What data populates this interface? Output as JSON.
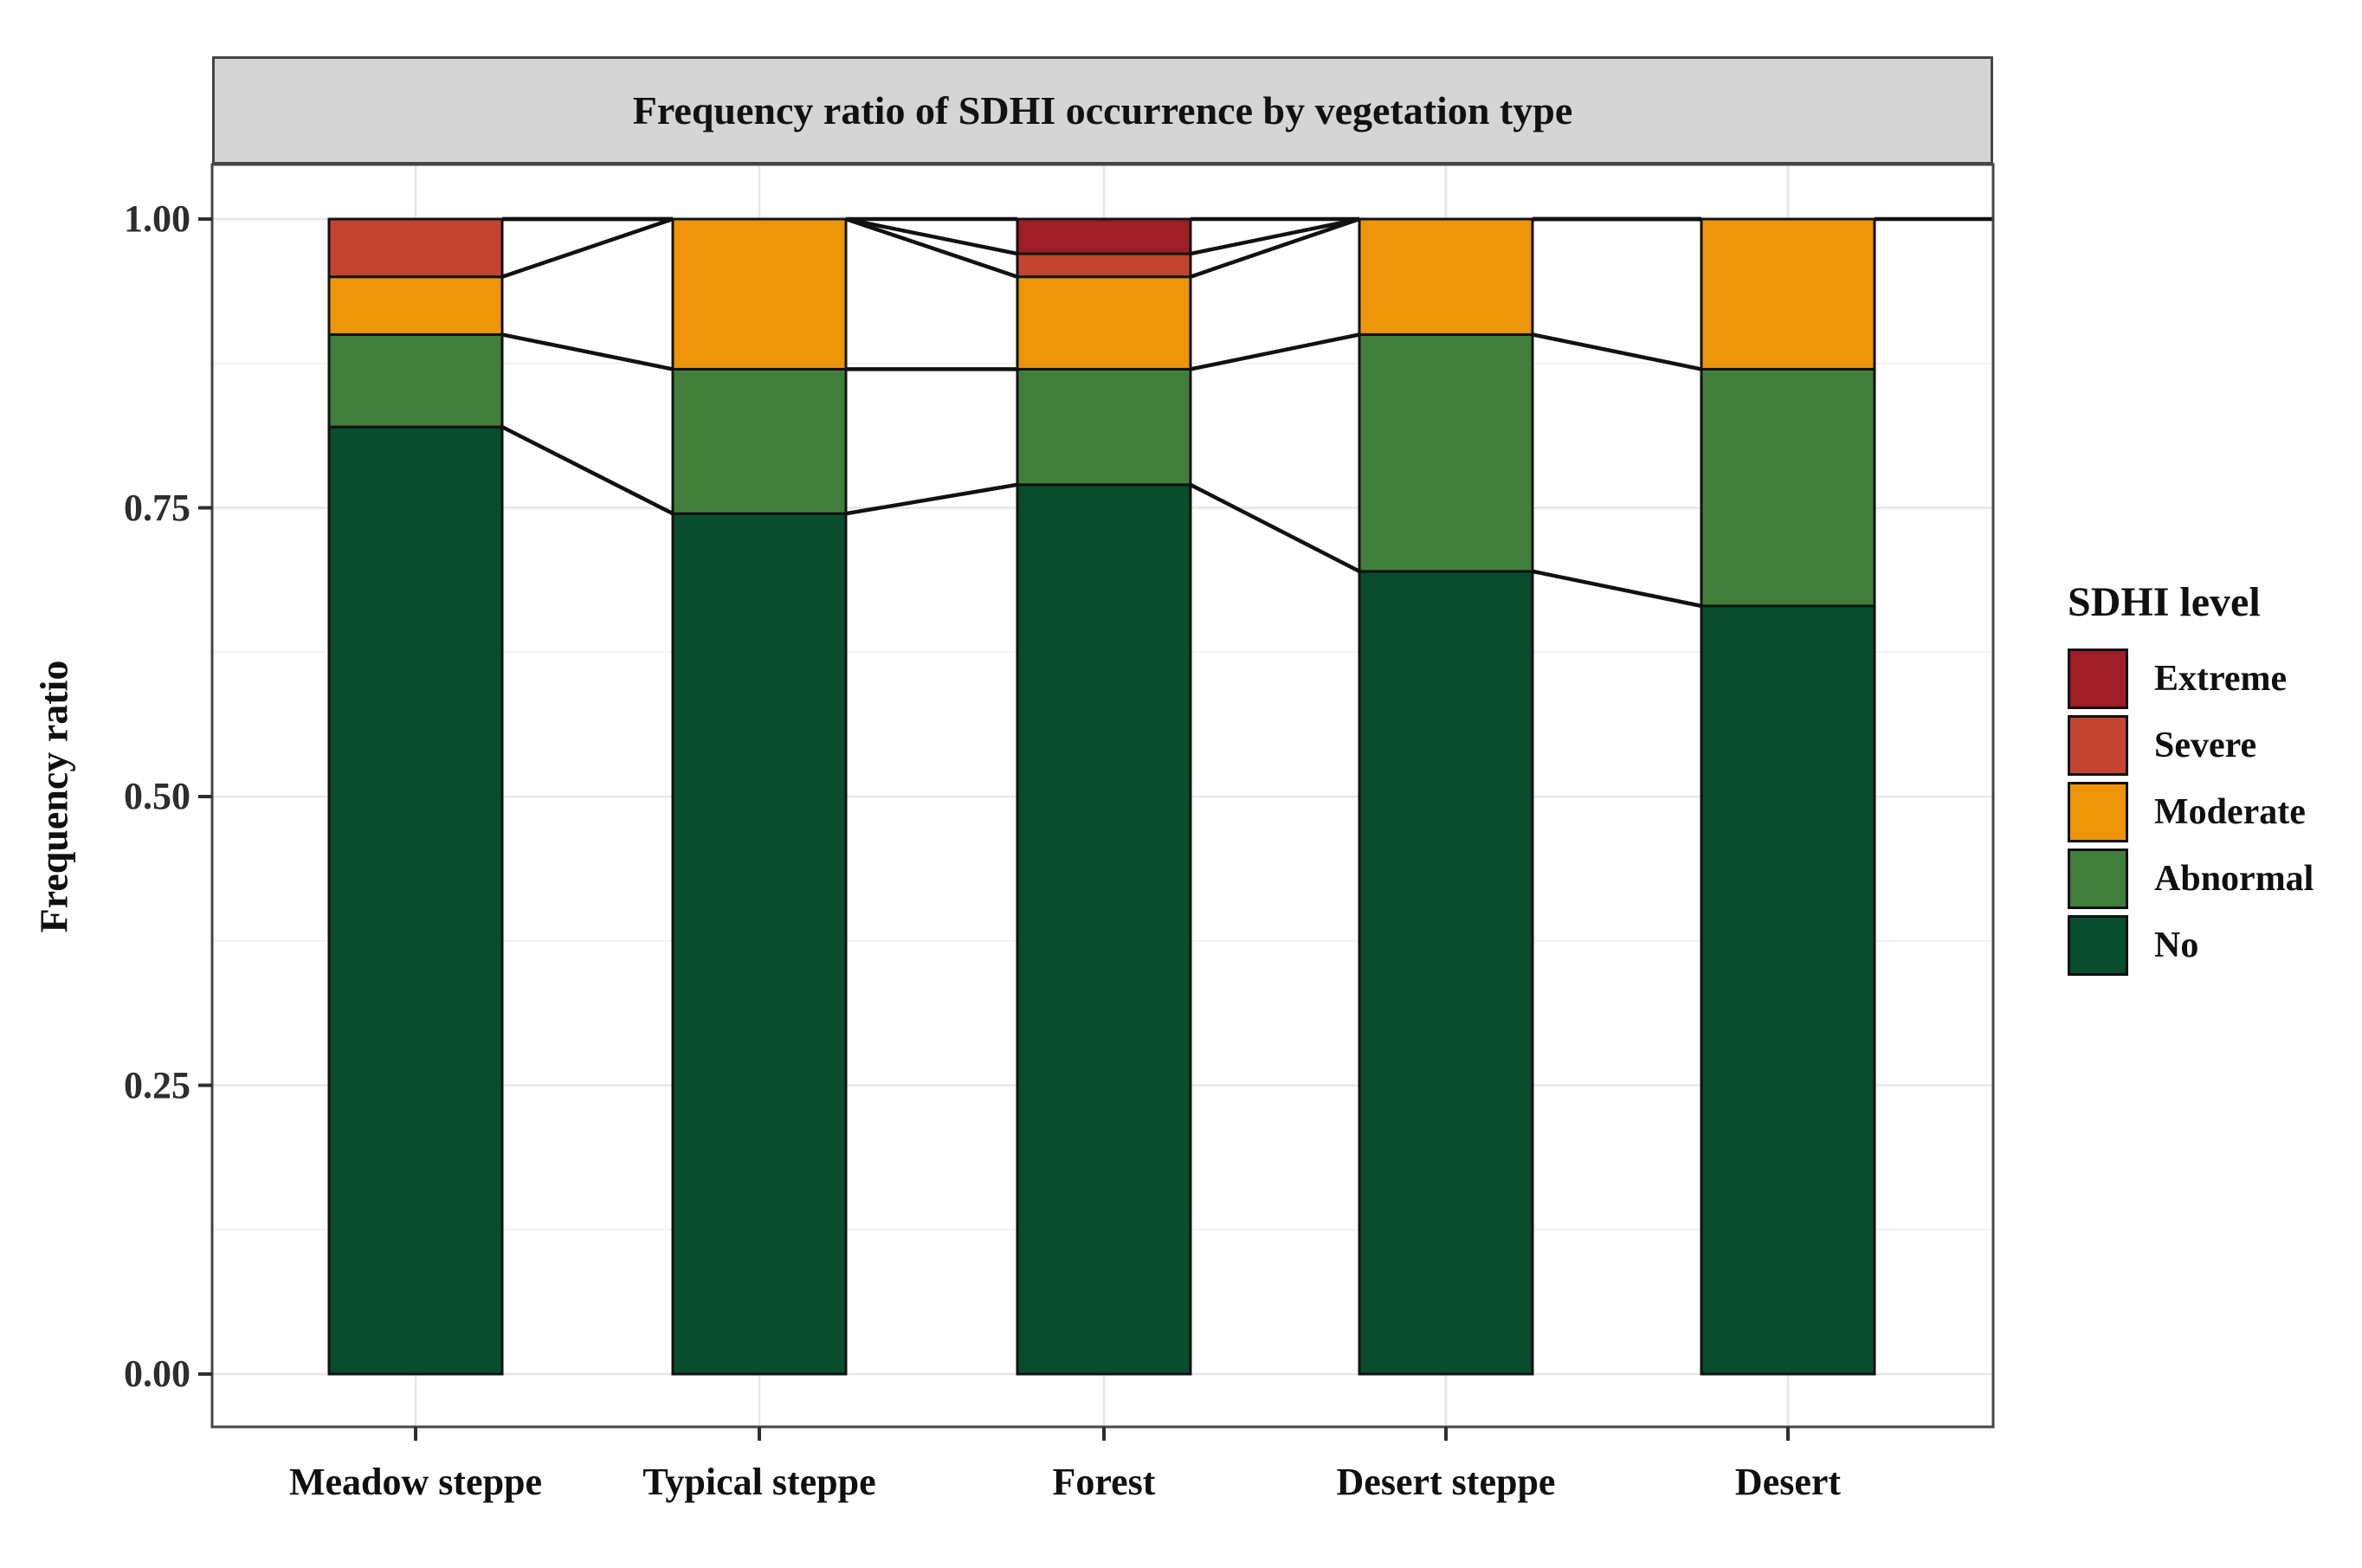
{
  "figure": {
    "panel_title": "Frequency ratio of SDHI occurrence by vegetation type",
    "y_axis_title": "Frequency ratio",
    "y_tick_labels": [
      "1.00",
      "0.75",
      "0.50",
      "0.25",
      "0.00"
    ],
    "legend_title": "SDHI level"
  },
  "colors": {
    "Extreme": "#9E1D26",
    "Severe": "#C24431",
    "Moderate": "#EE9408",
    "Abnormal": "#417E3C",
    "No": "#074D2E",
    "bar_border": "#111111",
    "connector": "#111111",
    "panel_border": "#454545",
    "strip_fill": "#D5D5D5",
    "grid_major": "#E6E6E6",
    "grid_minor": "#F2F2F2",
    "tick_mark": "#2e2e2e"
  },
  "chart_data": {
    "type": "bar",
    "stacked": true,
    "title": "Frequency ratio of SDHI occurrence by vegetation type",
    "xlabel": "",
    "ylabel": "Frequency ratio",
    "ylim": [
      0,
      1
    ],
    "y_ticks": [
      1.0,
      0.75,
      0.5,
      0.25,
      0.0
    ],
    "y_minor_ticks": [
      0.875,
      0.625,
      0.375,
      0.125
    ],
    "grid": true,
    "categories": [
      "Meadow steppe",
      "Typical steppe",
      "Forest",
      "Desert steppe",
      "Desert"
    ],
    "series": [
      {
        "name": "No",
        "values": [
          0.82,
          0.745,
          0.77,
          0.695,
          0.665
        ]
      },
      {
        "name": "Abnormal",
        "values": [
          0.08,
          0.125,
          0.1,
          0.205,
          0.205
        ]
      },
      {
        "name": "Moderate",
        "values": [
          0.05,
          0.13,
          0.08,
          0.1,
          0.13
        ]
      },
      {
        "name": "Severe",
        "values": [
          0.05,
          0.0,
          0.02,
          0.0,
          0.0
        ]
      },
      {
        "name": "Extreme",
        "values": [
          0.0,
          0.0,
          0.03,
          0.0,
          0.0
        ]
      }
    ],
    "legend_title": "SDHI level",
    "legend_position": "right",
    "legend_order": [
      "Extreme",
      "Severe",
      "Moderate",
      "Abnormal",
      "No"
    ],
    "connectors_between_bars": true
  }
}
